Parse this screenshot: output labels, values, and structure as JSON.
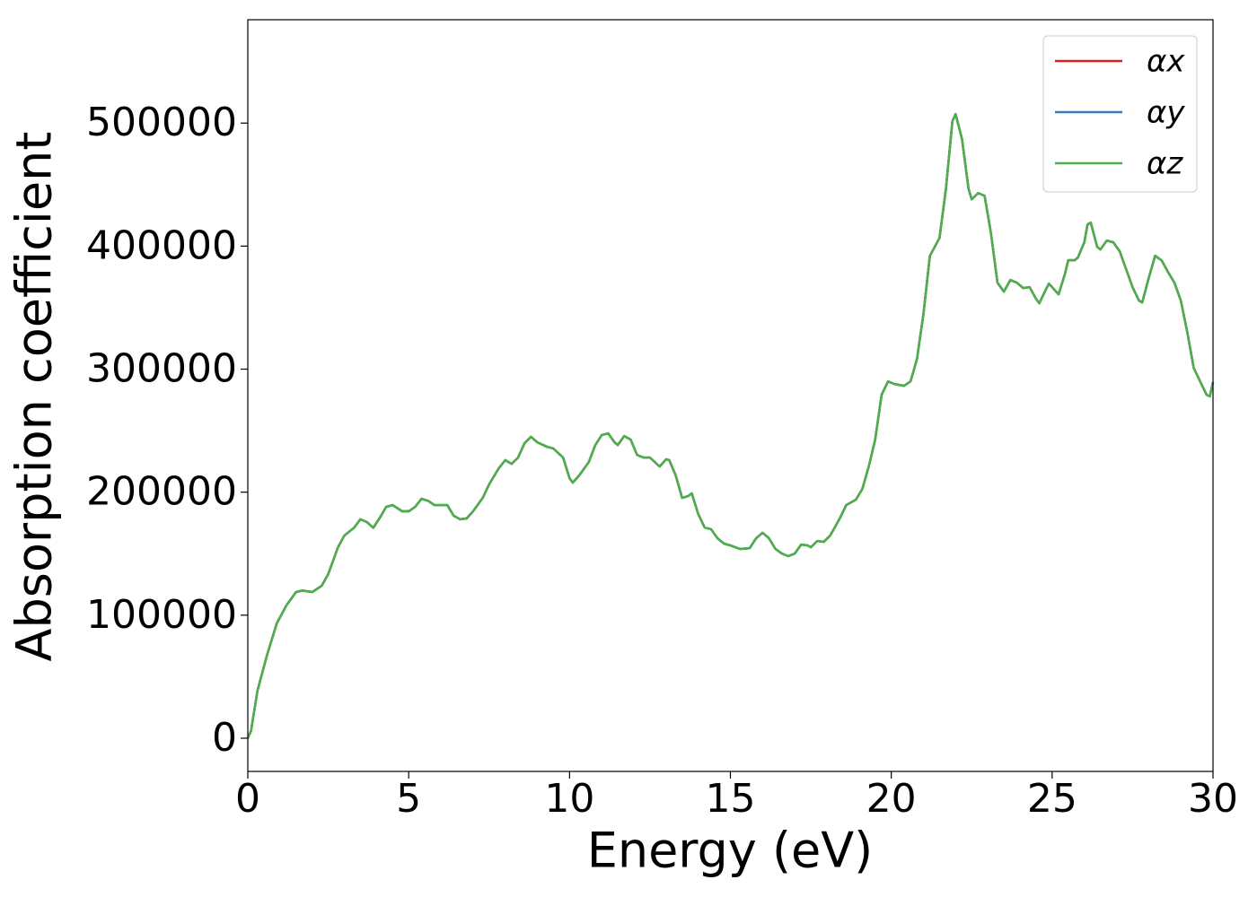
{
  "chart_data": {
    "type": "line",
    "xlabel": "Energy (eV)",
    "ylabel": "Absorption coefficient",
    "x": [
      0,
      0.1,
      0.3,
      0.6,
      0.9,
      1.2,
      1.5,
      1.7,
      2.0,
      2.3,
      2.5,
      2.8,
      3.0,
      3.3,
      3.5,
      3.7,
      3.9,
      4.1,
      4.3,
      4.5,
      4.8,
      5.0,
      5.2,
      5.4,
      5.6,
      5.8,
      6.0,
      6.2,
      6.4,
      6.6,
      6.8,
      7.0,
      7.3,
      7.5,
      7.8,
      8.0,
      8.2,
      8.4,
      8.6,
      8.8,
      9.0,
      9.3,
      9.5,
      9.8,
      10.0,
      10.1,
      10.3,
      10.6,
      10.8,
      11.0,
      11.2,
      11.4,
      11.5,
      11.7,
      11.9,
      12.1,
      12.3,
      12.5,
      12.8,
      13.0,
      13.1,
      13.3,
      13.5,
      13.7,
      13.8,
      14.0,
      14.2,
      14.4,
      14.6,
      14.8,
      15.0,
      15.3,
      15.6,
      15.8,
      16.0,
      16.2,
      16.4,
      16.6,
      16.8,
      17.0,
      17.2,
      17.4,
      17.5,
      17.7,
      17.9,
      18.1,
      18.4,
      18.6,
      18.9,
      19.1,
      19.3,
      19.5,
      19.7,
      19.9,
      20.1,
      20.4,
      20.6,
      20.8,
      21.0,
      21.2,
      21.5,
      21.7,
      21.9,
      22.0,
      22.2,
      22.4,
      22.5,
      22.7,
      22.9,
      23.1,
      23.3,
      23.5,
      23.7,
      23.9,
      24.1,
      24.3,
      24.5,
      24.6,
      24.8,
      24.9,
      25.0,
      25.2,
      25.4,
      25.5,
      25.7,
      25.8,
      26.0,
      26.1,
      26.2,
      26.4,
      26.5,
      26.7,
      26.9,
      27.1,
      27.3,
      27.5,
      27.7,
      27.8,
      28.0,
      28.2,
      28.4,
      28.6,
      28.8,
      29.0,
      29.2,
      29.4,
      29.6,
      29.8,
      29.9,
      30.0
    ],
    "series": [
      {
        "name": "αx",
        "color": "#e41a1c",
        "values": [
          0,
          6000,
          38600,
          67800,
          93300,
          108000,
          118800,
          120000,
          118800,
          124000,
          133400,
          155000,
          164700,
          171000,
          178000,
          175700,
          171000,
          179000,
          188000,
          189500,
          184400,
          184400,
          188000,
          194600,
          193000,
          189500,
          189500,
          189500,
          180800,
          178000,
          178600,
          184400,
          195300,
          206300,
          219400,
          226000,
          223000,
          228100,
          239800,
          245000,
          240500,
          236900,
          235400,
          228100,
          211400,
          207700,
          213600,
          224500,
          238300,
          246400,
          247800,
          240500,
          238300,
          245600,
          242700,
          230300,
          228100,
          228100,
          220800,
          226700,
          226000,
          213600,
          195300,
          197000,
          199000,
          182200,
          171300,
          169800,
          162500,
          158200,
          156700,
          153800,
          154500,
          162500,
          167000,
          162500,
          153800,
          150100,
          148000,
          150100,
          157400,
          156700,
          155200,
          160300,
          159600,
          164700,
          178600,
          189500,
          193900,
          202600,
          220800,
          242700,
          279200,
          290000,
          287900,
          286400,
          290100,
          308300,
          344800,
          392100,
          406700,
          446800,
          501500,
          507300,
          486900,
          446800,
          438000,
          443100,
          440900,
          410300,
          370300,
          363000,
          372400,
          370300,
          365900,
          366600,
          357100,
          353500,
          364400,
          369500,
          366600,
          360800,
          377600,
          388500,
          388500,
          390700,
          403100,
          417600,
          419100,
          399400,
          397200,
          404500,
          403100,
          395800,
          381200,
          366600,
          355700,
          354200,
          373900,
          392100,
          388500,
          379000,
          370300,
          355700,
          330200,
          301000,
          290000,
          279200,
          277800,
          289400
        ]
      },
      {
        "name": "αy",
        "color": "#377eb8",
        "values": [
          0,
          6000,
          38600,
          67800,
          93300,
          108000,
          118800,
          120000,
          118800,
          124000,
          133400,
          155000,
          164700,
          171000,
          178000,
          175700,
          171000,
          179000,
          188000,
          189500,
          184400,
          184400,
          188000,
          194600,
          193000,
          189500,
          189500,
          189500,
          180800,
          178000,
          178600,
          184400,
          195300,
          206300,
          219400,
          226000,
          223000,
          228100,
          239800,
          245000,
          240500,
          236900,
          235400,
          228100,
          211400,
          207700,
          213600,
          224500,
          238300,
          246400,
          247800,
          240500,
          238300,
          245600,
          242700,
          230300,
          228100,
          228100,
          220800,
          226700,
          226000,
          213600,
          195300,
          197000,
          199000,
          182200,
          171300,
          169800,
          162500,
          158200,
          156700,
          153800,
          154500,
          162500,
          167000,
          162500,
          153800,
          150100,
          148000,
          150100,
          157400,
          156700,
          155200,
          160300,
          159600,
          164700,
          178600,
          189500,
          193900,
          202600,
          220800,
          242700,
          279200,
          290000,
          287900,
          286400,
          290100,
          308300,
          344800,
          392100,
          406700,
          446800,
          501500,
          507300,
          486900,
          446800,
          438000,
          443100,
          440900,
          410300,
          370300,
          363000,
          372400,
          370300,
          365900,
          366600,
          357100,
          353500,
          364400,
          369500,
          366600,
          360800,
          377600,
          388500,
          388500,
          390700,
          403100,
          417600,
          419100,
          399400,
          397200,
          404500,
          403100,
          395800,
          381200,
          366600,
          355700,
          354200,
          373900,
          392100,
          388500,
          379000,
          370300,
          355700,
          330200,
          301000,
          290000,
          279200,
          277800,
          289400
        ]
      },
      {
        "name": "αz",
        "color": "#4daf4a",
        "values": [
          0,
          6000,
          38600,
          67800,
          93300,
          108000,
          118800,
          120000,
          118800,
          124000,
          133400,
          155000,
          164700,
          171000,
          178000,
          175700,
          171000,
          179000,
          188000,
          189500,
          184400,
          184400,
          188000,
          194600,
          193000,
          189500,
          189500,
          189500,
          180800,
          178000,
          178600,
          184400,
          195300,
          206300,
          219400,
          226000,
          223000,
          228100,
          239800,
          245000,
          240500,
          236900,
          235400,
          228100,
          211400,
          207700,
          213600,
          224500,
          238300,
          246400,
          247800,
          240500,
          238300,
          245600,
          242700,
          230300,
          228100,
          228100,
          220800,
          226700,
          226000,
          213600,
          195300,
          197000,
          199000,
          182200,
          171300,
          169800,
          162500,
          158200,
          156700,
          153800,
          154500,
          162500,
          167000,
          162500,
          153800,
          150100,
          148000,
          150100,
          157400,
          156700,
          155200,
          160300,
          159600,
          164700,
          178600,
          189500,
          193900,
          202600,
          220800,
          242700,
          279200,
          290000,
          287900,
          286400,
          290100,
          308300,
          344800,
          392100,
          406700,
          446800,
          501500,
          507300,
          486900,
          446800,
          438000,
          443100,
          440900,
          410300,
          370300,
          363000,
          372400,
          370300,
          365900,
          366600,
          357100,
          353500,
          364400,
          369500,
          366600,
          360800,
          377600,
          388500,
          388500,
          390700,
          403100,
          417600,
          419100,
          399400,
          397200,
          404500,
          403100,
          395800,
          381200,
          366600,
          355700,
          354200,
          373900,
          392100,
          388500,
          379000,
          370300,
          355700,
          330200,
          301000,
          290000,
          279200,
          277800,
          289400
        ]
      }
    ],
    "xlim": [
      0,
      30
    ],
    "xticks": [
      0,
      5,
      10,
      15,
      20,
      25,
      30
    ],
    "ylim": [
      -27000,
      584000
    ],
    "yticks": [
      0,
      100000,
      200000,
      300000,
      400000,
      500000
    ],
    "legend": "upper right",
    "grid": false
  }
}
